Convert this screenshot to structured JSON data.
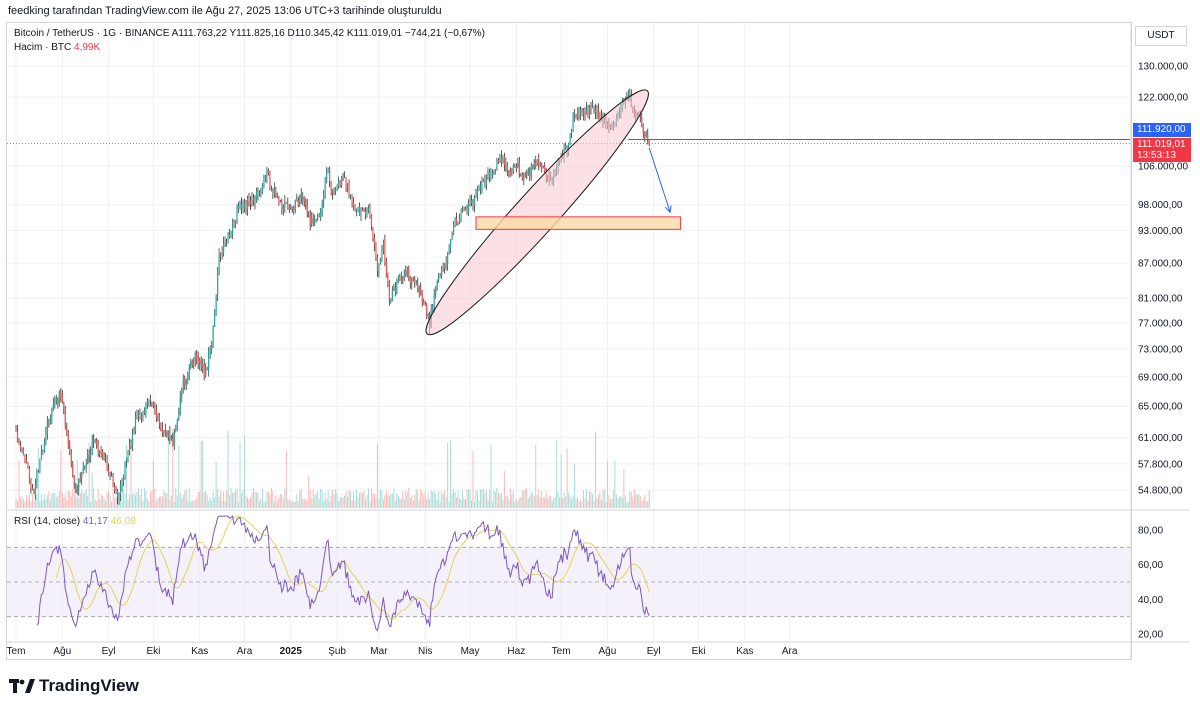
{
  "header": {
    "note": "feedking tarafından TradingView.com ile Ağu 27, 2025 13:06 UTC+3 tarihinde oluşturuldu"
  },
  "legend": {
    "symbol": "Bitcoin / TetherUS · 1G · BINANCE",
    "open": "A111.763,22",
    "high": "Y111.825,16",
    "low": "D110.345,42",
    "close": "K111.019,01",
    "change": "−744,21 (−0,67%)",
    "volume_label": "Hacim · BTC",
    "volume_value": "4,99K",
    "rsi_label": "RSI (14, close)",
    "rsi_value": "41,17",
    "rsi_ma_value": "46,08"
  },
  "price_axis": {
    "currency": "USDT",
    "blue_line_label": "111.920,00",
    "last_price_label": "111.019,01",
    "countdown": "13:53:13"
  },
  "colors": {
    "up": "#26a69a",
    "down": "#ef5350",
    "rsi": "#7e57c2",
    "rsi_ma": "#e4d35a",
    "accent": "#2962ff",
    "ellipse_fill": "#f8c9cf",
    "zone_fill": "#fbd9a4",
    "zone_stroke": "#f23645"
  },
  "brand": {
    "name": "TradingView"
  },
  "chart_data": [
    {
      "type": "candlestick",
      "title": "Bitcoin / TetherUS · 1G · BINANCE",
      "y_scale": "log",
      "ylim": [
        52000,
        140000
      ],
      "x_range": [
        0,
        430
      ],
      "x_unit": "days since 2024-07-01",
      "y_ticks": [
        {
          "value": 130000,
          "label": "130.000,00"
        },
        {
          "value": 122000,
          "label": "122.000,00"
        },
        {
          "value": 106000,
          "label": "106.000,00"
        },
        {
          "value": 98000,
          "label": "98.000,00"
        },
        {
          "value": 93000,
          "label": "93.000,00"
        },
        {
          "value": 87000,
          "label": "87.000,00"
        },
        {
          "value": 81000,
          "label": "81.000,00"
        },
        {
          "value": 77000,
          "label": "77.000,00"
        },
        {
          "value": 73000,
          "label": "73.000,00"
        },
        {
          "value": 69000,
          "label": "69.000,00"
        },
        {
          "value": 65000,
          "label": "65.000,00"
        },
        {
          "value": 61000,
          "label": "61.000,00"
        },
        {
          "value": 57800,
          "label": "57.800,00"
        },
        {
          "value": 54800,
          "label": "54.800,00"
        }
      ],
      "x_ticks": [
        {
          "day": 0,
          "label": "Tem"
        },
        {
          "day": 31,
          "label": "Ağu"
        },
        {
          "day": 62,
          "label": "Eyl"
        },
        {
          "day": 92,
          "label": "Eki"
        },
        {
          "day": 123,
          "label": "Kas"
        },
        {
          "day": 153,
          "label": "Ara"
        },
        {
          "day": 184,
          "label": "2025"
        },
        {
          "day": 215,
          "label": "Şub"
        },
        {
          "day": 243,
          "label": "Mar"
        },
        {
          "day": 274,
          "label": "Nis"
        },
        {
          "day": 304,
          "label": "May"
        },
        {
          "day": 335,
          "label": "Haz"
        },
        {
          "day": 365,
          "label": "Tem"
        },
        {
          "day": 396,
          "label": "Ağu"
        },
        {
          "day": 427,
          "label": "Eyl"
        },
        {
          "day": 457,
          "label": "Eki"
        },
        {
          "day": 488,
          "label": "Kas"
        },
        {
          "day": 518,
          "label": "Ara"
        }
      ],
      "anchors": [
        [
          0,
          61500
        ],
        [
          12,
          54500
        ],
        [
          22,
          63500
        ],
        [
          30,
          67000
        ],
        [
          36,
          59000
        ],
        [
          40,
          55000
        ],
        [
          52,
          60500
        ],
        [
          60,
          58000
        ],
        [
          68,
          54000
        ],
        [
          80,
          63000
        ],
        [
          90,
          65500
        ],
        [
          98,
          62000
        ],
        [
          105,
          60500
        ],
        [
          112,
          68000
        ],
        [
          120,
          72000
        ],
        [
          127,
          69500
        ],
        [
          132,
          76000
        ],
        [
          136,
          88000
        ],
        [
          142,
          92000
        ],
        [
          150,
          97500
        ],
        [
          160,
          99000
        ],
        [
          168,
          104500
        ],
        [
          172,
          100500
        ],
        [
          178,
          98000
        ],
        [
          185,
          97000
        ],
        [
          192,
          100000
        ],
        [
          197,
          94500
        ],
        [
          204,
          97000
        ],
        [
          208,
          105500
        ],
        [
          212,
          101000
        ],
        [
          220,
          103000
        ],
        [
          228,
          96500
        ],
        [
          236,
          97000
        ],
        [
          242,
          86000
        ],
        [
          246,
          91000
        ],
        [
          250,
          80500
        ],
        [
          256,
          84000
        ],
        [
          262,
          85000
        ],
        [
          270,
          82000
        ],
        [
          277,
          77000
        ],
        [
          282,
          84000
        ],
        [
          288,
          87500
        ],
        [
          294,
          94500
        ],
        [
          300,
          97000
        ],
        [
          306,
          98500
        ],
        [
          312,
          102500
        ],
        [
          318,
          104500
        ],
        [
          324,
          108000
        ],
        [
          330,
          104500
        ],
        [
          336,
          105500
        ],
        [
          342,
          103500
        ],
        [
          348,
          107000
        ],
        [
          354,
          104500
        ],
        [
          358,
          103000
        ],
        [
          364,
          108000
        ],
        [
          370,
          110500
        ],
        [
          374,
          118000
        ],
        [
          380,
          117500
        ],
        [
          386,
          119000
        ],
        [
          392,
          117000
        ],
        [
          398,
          114500
        ],
        [
          404,
          118000
        ],
        [
          410,
          123500
        ],
        [
          414,
          118000
        ],
        [
          418,
          116500
        ],
        [
          421,
          112500
        ],
        [
          424,
          111000
        ]
      ],
      "last": {
        "open": 111763.22,
        "high": 111825.16,
        "low": 110345.42,
        "close": 111019.01
      },
      "horizontal_line": 111920,
      "support_zone": {
        "day_from": 308,
        "day_to": 445,
        "price_low": 93200,
        "price_high": 95600
      },
      "channel_ellipse": {
        "from": {
          "day": 278,
          "price": 76000
        },
        "to": {
          "day": 420,
          "price": 122500
        }
      },
      "projection_arrow": {
        "from": {
          "day": 424,
          "price": 110000
        },
        "to": {
          "day": 438,
          "price": 96500
        }
      }
    },
    {
      "type": "bar",
      "title": "Hacim · BTC",
      "last_value": "4,99K",
      "note": "daily volume histogram, colored by candle direction"
    },
    {
      "type": "line",
      "title": "RSI (14, close)",
      "ylim": [
        20,
        90
      ],
      "y_ticks": [
        {
          "value": 80,
          "label": "80,00"
        },
        {
          "value": 60,
          "label": "60,00"
        },
        {
          "value": 40,
          "label": "40,00"
        },
        {
          "value": 20,
          "label": "20,00"
        }
      ],
      "bands": [
        70,
        50,
        30
      ],
      "series": [
        {
          "name": "RSI",
          "last": 41.17
        },
        {
          "name": "RSI MA",
          "last": 46.08
        }
      ]
    }
  ]
}
